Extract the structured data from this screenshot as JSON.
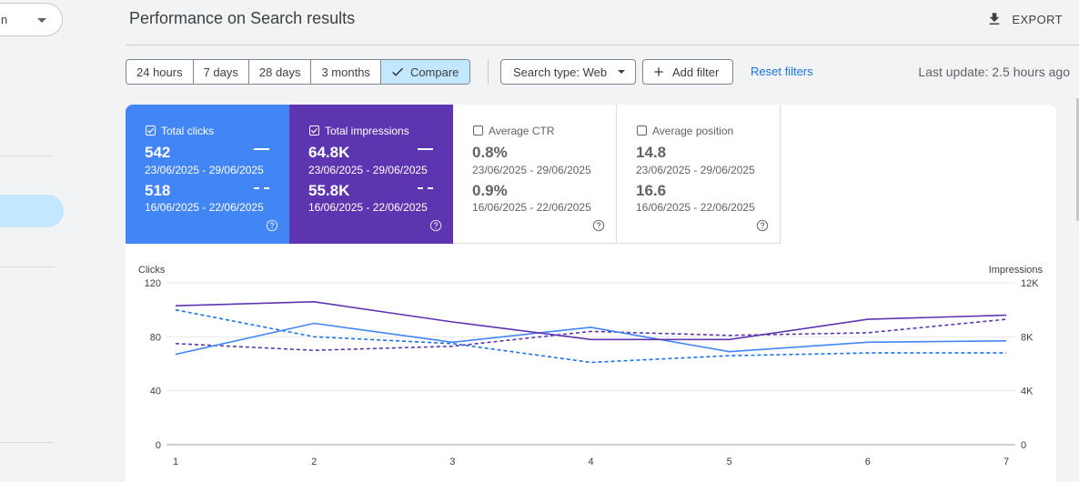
{
  "sidebar": {
    "property_select_text": "n"
  },
  "header": {
    "title": "Performance on Search results",
    "export_label": "EXPORT"
  },
  "toolbar": {
    "ranges": [
      "24 hours",
      "7 days",
      "28 days",
      "3 months"
    ],
    "compare_label": "Compare",
    "search_type_label": "Search type: Web",
    "add_filter_label": "Add filter",
    "reset_label": "Reset filters",
    "last_update": "Last update: 2.5 hours ago"
  },
  "cards": [
    {
      "label": "Total clicks",
      "checked": true,
      "value1": "542",
      "date1": "23/06/2025 - 29/06/2025",
      "value2": "518",
      "date2": "16/06/2025 - 22/06/2025",
      "color": "#4285f4"
    },
    {
      "label": "Total impressions",
      "checked": true,
      "value1": "64.8K",
      "date1": "23/06/2025 - 29/06/2025",
      "value2": "55.8K",
      "date2": "16/06/2025 - 22/06/2025",
      "color": "#5e35b1"
    },
    {
      "label": "Average CTR",
      "checked": false,
      "value1": "0.8%",
      "date1": "23/06/2025 - 29/06/2025",
      "value2": "0.9%",
      "date2": "16/06/2025 - 22/06/2025"
    },
    {
      "label": "Average position",
      "checked": false,
      "value1": "14.8",
      "date1": "23/06/2025 - 29/06/2025",
      "value2": "16.6",
      "date2": "16/06/2025 - 22/06/2025"
    }
  ],
  "chart_data": {
    "type": "line",
    "x": [
      1,
      2,
      3,
      4,
      5,
      6,
      7
    ],
    "y_left_label": "Clicks",
    "y_right_label": "Impressions",
    "y_left_ticks": [
      "0",
      "40",
      "80",
      "120"
    ],
    "y_right_ticks": [
      "0",
      "4K",
      "8K",
      "12K"
    ],
    "y_left_range": [
      0,
      120
    ],
    "y_right_range": [
      0,
      12000
    ],
    "grid": true,
    "series": [
      {
        "metric": "clicks",
        "period": "current",
        "axis": "left",
        "style": "solid",
        "color": "#4285f4",
        "values": [
          67,
          90,
          76,
          87,
          69,
          76,
          77
        ]
      },
      {
        "metric": "clicks",
        "period": "previous",
        "axis": "left",
        "style": "dashed",
        "color": "#1a73e8",
        "values": [
          100,
          80,
          75,
          61,
          66,
          68,
          68
        ]
      },
      {
        "metric": "impressions",
        "period": "current",
        "axis": "right",
        "style": "solid",
        "color": "#5e35b1",
        "values": [
          10300,
          10600,
          9100,
          7800,
          7800,
          9300,
          9600
        ]
      },
      {
        "metric": "impressions",
        "period": "previous",
        "axis": "right",
        "style": "dashed",
        "color": "#5e35b1",
        "values": [
          7500,
          7000,
          7300,
          8400,
          8100,
          8300,
          9300
        ]
      }
    ]
  }
}
